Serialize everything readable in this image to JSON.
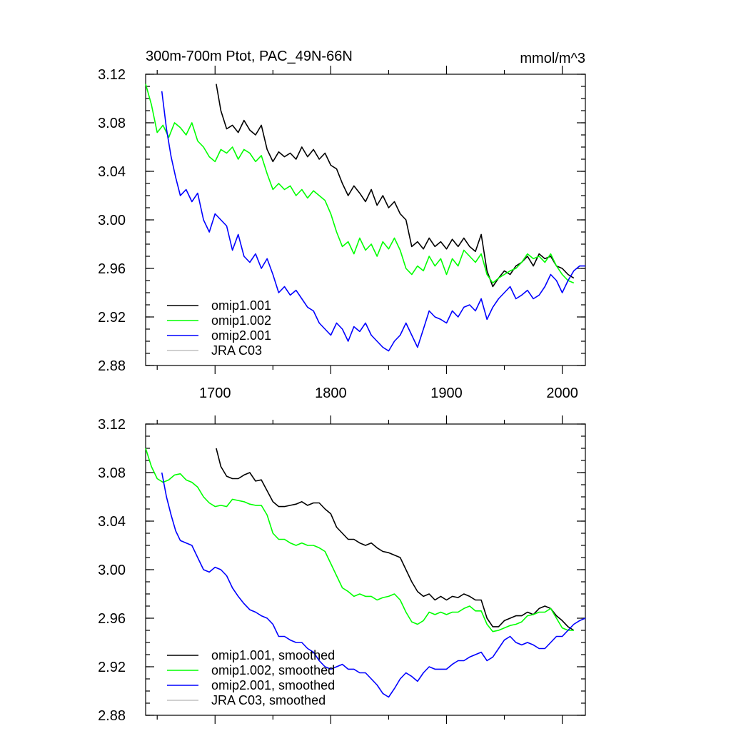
{
  "colors": {
    "omip1_001": "#000000",
    "omip1_002": "#00ff00",
    "omip2_001": "#0000ff",
    "jra_c03": "#c0c0c0"
  },
  "chart_data": [
    {
      "type": "line",
      "title": "300m-700m Ptot, PAC_49N-66N",
      "units": "mmol/m^3",
      "xlim": [
        1640,
        2020
      ],
      "ylim": [
        2.88,
        3.12
      ],
      "xticks": [
        1700,
        1800,
        1900,
        2000
      ],
      "xtick_labels": [
        "1700",
        "1800",
        "1900",
        "2000"
      ],
      "yticks": [
        2.88,
        2.92,
        2.96,
        3.0,
        3.04,
        3.08,
        3.12
      ],
      "ytick_labels": [
        "2.88",
        "2.92",
        "2.96",
        "3.00",
        "3.04",
        "3.08",
        "3.12"
      ],
      "legend_position": "bottom-left",
      "series": [
        {
          "name": "omip1.001",
          "color_key": "omip1_001",
          "x": [
            1701,
            1705,
            1710,
            1715,
            1720,
            1725,
            1730,
            1735,
            1740,
            1745,
            1750,
            1755,
            1760,
            1765,
            1770,
            1775,
            1780,
            1785,
            1790,
            1795,
            1800,
            1805,
            1810,
            1815,
            1820,
            1825,
            1830,
            1835,
            1840,
            1845,
            1850,
            1855,
            1860,
            1865,
            1870,
            1875,
            1880,
            1885,
            1890,
            1895,
            1900,
            1905,
            1910,
            1915,
            1920,
            1925,
            1930,
            1935,
            1940,
            1945,
            1950,
            1955,
            1960,
            1965,
            1970,
            1975,
            1980,
            1985,
            1990,
            1995,
            2000,
            2005,
            2010
          ],
          "values": [
            3.112,
            3.09,
            3.075,
            3.078,
            3.072,
            3.082,
            3.074,
            3.07,
            3.078,
            3.058,
            3.048,
            3.056,
            3.052,
            3.055,
            3.05,
            3.06,
            3.052,
            3.058,
            3.05,
            3.055,
            3.045,
            3.042,
            3.03,
            3.02,
            3.028,
            3.022,
            3.015,
            3.025,
            3.012,
            3.02,
            3.01,
            3.015,
            3.005,
            3.0,
            2.978,
            2.982,
            2.976,
            2.985,
            2.978,
            2.982,
            2.976,
            2.984,
            2.978,
            2.985,
            2.978,
            2.974,
            2.988,
            2.958,
            2.945,
            2.952,
            2.958,
            2.955,
            2.962,
            2.965,
            2.97,
            2.962,
            2.972,
            2.968,
            2.97,
            2.962,
            2.96,
            2.955,
            2.952
          ]
        },
        {
          "name": "omip1.002",
          "color_key": "omip1_002",
          "x": [
            1640,
            1645,
            1650,
            1655,
            1660,
            1665,
            1670,
            1675,
            1680,
            1685,
            1690,
            1695,
            1700,
            1705,
            1710,
            1715,
            1720,
            1725,
            1730,
            1735,
            1740,
            1745,
            1750,
            1755,
            1760,
            1765,
            1770,
            1775,
            1780,
            1785,
            1790,
            1795,
            1800,
            1805,
            1810,
            1815,
            1820,
            1825,
            1830,
            1835,
            1840,
            1845,
            1850,
            1855,
            1860,
            1865,
            1870,
            1875,
            1880,
            1885,
            1890,
            1895,
            1900,
            1905,
            1910,
            1915,
            1920,
            1925,
            1930,
            1935,
            1940,
            1945,
            1950,
            1955,
            1960,
            1965,
            1970,
            1975,
            1980,
            1985,
            1990,
            1995,
            2000,
            2005,
            2010
          ],
          "values": [
            3.112,
            3.095,
            3.072,
            3.078,
            3.068,
            3.08,
            3.076,
            3.07,
            3.08,
            3.065,
            3.06,
            3.052,
            3.048,
            3.058,
            3.055,
            3.06,
            3.05,
            3.058,
            3.055,
            3.048,
            3.053,
            3.038,
            3.025,
            3.03,
            3.025,
            3.028,
            3.02,
            3.025,
            3.018,
            3.024,
            3.02,
            3.016,
            3.005,
            2.99,
            2.978,
            2.982,
            2.972,
            2.985,
            2.975,
            2.98,
            2.97,
            2.982,
            2.976,
            2.985,
            2.975,
            2.96,
            2.955,
            2.962,
            2.958,
            2.97,
            2.962,
            2.968,
            2.955,
            2.968,
            2.962,
            2.975,
            2.97,
            2.965,
            2.972,
            2.955,
            2.948,
            2.952,
            2.955,
            2.958,
            2.96,
            2.965,
            2.972,
            2.968,
            2.97,
            2.965,
            2.972,
            2.962,
            2.955,
            2.95,
            2.948
          ]
        },
        {
          "name": "omip2.001",
          "color_key": "omip2_001",
          "x": [
            1654,
            1658,
            1662,
            1666,
            1670,
            1675,
            1680,
            1685,
            1690,
            1695,
            1700,
            1705,
            1710,
            1715,
            1720,
            1725,
            1730,
            1735,
            1740,
            1745,
            1750,
            1755,
            1760,
            1765,
            1770,
            1775,
            1780,
            1785,
            1790,
            1795,
            1800,
            1805,
            1810,
            1815,
            1820,
            1825,
            1830,
            1835,
            1840,
            1845,
            1850,
            1855,
            1860,
            1865,
            1870,
            1875,
            1880,
            1885,
            1890,
            1895,
            1900,
            1905,
            1910,
            1915,
            1920,
            1925,
            1930,
            1935,
            1940,
            1945,
            1950,
            1955,
            1960,
            1965,
            1970,
            1975,
            1980,
            1985,
            1990,
            1995,
            2000,
            2005,
            2010,
            2015,
            2020
          ],
          "values": [
            3.106,
            3.075,
            3.052,
            3.035,
            3.02,
            3.025,
            3.015,
            3.022,
            3.0,
            2.99,
            3.005,
            3.0,
            2.995,
            2.975,
            2.988,
            2.97,
            2.965,
            2.972,
            2.96,
            2.968,
            2.955,
            2.94,
            2.945,
            2.938,
            2.942,
            2.935,
            2.928,
            2.925,
            2.915,
            2.91,
            2.905,
            2.915,
            2.91,
            2.9,
            2.912,
            2.908,
            2.915,
            2.905,
            2.9,
            2.895,
            2.892,
            2.9,
            2.905,
            2.915,
            2.905,
            2.895,
            2.91,
            2.925,
            2.92,
            2.918,
            2.915,
            2.925,
            2.92,
            2.928,
            2.93,
            2.925,
            2.935,
            2.918,
            2.928,
            2.935,
            2.94,
            2.945,
            2.935,
            2.938,
            2.942,
            2.935,
            2.938,
            2.945,
            2.955,
            2.95,
            2.94,
            2.95,
            2.958,
            2.962,
            2.962
          ]
        },
        {
          "name": "JRA C03",
          "color_key": "jra_c03",
          "x": [],
          "values": []
        }
      ]
    },
    {
      "type": "line",
      "title": "",
      "units": "",
      "xlim": [
        1640,
        2020
      ],
      "ylim": [
        2.88,
        3.12
      ],
      "xticks": [
        1700,
        1800,
        1900,
        2000
      ],
      "xtick_labels": [],
      "yticks": [
        2.88,
        2.92,
        2.96,
        3.0,
        3.04,
        3.08,
        3.12
      ],
      "ytick_labels": [
        "2.88",
        "2.92",
        "2.96",
        "3.00",
        "3.04",
        "3.08",
        "3.12"
      ],
      "legend_position": "bottom-left",
      "series": [
        {
          "name": "omip1.001, smoothed",
          "color_key": "omip1_001",
          "x": [
            1701,
            1705,
            1710,
            1715,
            1720,
            1725,
            1730,
            1735,
            1740,
            1745,
            1750,
            1755,
            1760,
            1765,
            1770,
            1775,
            1780,
            1785,
            1790,
            1795,
            1800,
            1805,
            1810,
            1815,
            1820,
            1825,
            1830,
            1835,
            1840,
            1845,
            1850,
            1855,
            1860,
            1865,
            1870,
            1875,
            1880,
            1885,
            1890,
            1895,
            1900,
            1905,
            1910,
            1915,
            1920,
            1925,
            1930,
            1935,
            1940,
            1945,
            1950,
            1955,
            1960,
            1965,
            1970,
            1975,
            1980,
            1985,
            1990,
            1995,
            2000,
            2005,
            2010
          ],
          "values": [
            3.1,
            3.085,
            3.077,
            3.075,
            3.075,
            3.078,
            3.08,
            3.073,
            3.074,
            3.065,
            3.056,
            3.052,
            3.052,
            3.053,
            3.054,
            3.056,
            3.053,
            3.055,
            3.055,
            3.05,
            3.046,
            3.035,
            3.03,
            3.025,
            3.025,
            3.022,
            3.02,
            3.022,
            3.018,
            3.015,
            3.014,
            3.012,
            3.01,
            3.0,
            2.99,
            2.982,
            2.978,
            2.98,
            2.975,
            2.978,
            2.975,
            2.978,
            2.977,
            2.98,
            2.978,
            2.975,
            2.975,
            2.96,
            2.953,
            2.953,
            2.958,
            2.96,
            2.962,
            2.962,
            2.965,
            2.963,
            2.968,
            2.97,
            2.968,
            2.962,
            2.958,
            2.953,
            2.95
          ]
        },
        {
          "name": "omip1.002, smoothed",
          "color_key": "omip1_002",
          "x": [
            1640,
            1645,
            1650,
            1655,
            1660,
            1665,
            1670,
            1675,
            1680,
            1685,
            1690,
            1695,
            1700,
            1705,
            1710,
            1715,
            1720,
            1725,
            1730,
            1735,
            1740,
            1745,
            1750,
            1755,
            1760,
            1765,
            1770,
            1775,
            1780,
            1785,
            1790,
            1795,
            1800,
            1805,
            1810,
            1815,
            1820,
            1825,
            1830,
            1835,
            1840,
            1845,
            1850,
            1855,
            1860,
            1865,
            1870,
            1875,
            1880,
            1885,
            1890,
            1895,
            1900,
            1905,
            1910,
            1915,
            1920,
            1925,
            1930,
            1935,
            1940,
            1945,
            1950,
            1955,
            1960,
            1965,
            1970,
            1975,
            1980,
            1985,
            1990,
            1995,
            2000,
            2005,
            2010
          ],
          "values": [
            3.1,
            3.085,
            3.075,
            3.072,
            3.074,
            3.078,
            3.079,
            3.074,
            3.072,
            3.068,
            3.06,
            3.055,
            3.052,
            3.053,
            3.052,
            3.058,
            3.057,
            3.056,
            3.054,
            3.053,
            3.053,
            3.045,
            3.03,
            3.025,
            3.025,
            3.022,
            3.02,
            3.022,
            3.02,
            3.02,
            3.018,
            3.015,
            3.005,
            2.995,
            2.985,
            2.982,
            2.978,
            2.98,
            2.978,
            2.978,
            2.975,
            2.977,
            2.978,
            2.98,
            2.975,
            2.965,
            2.957,
            2.955,
            2.958,
            2.965,
            2.963,
            2.965,
            2.963,
            2.965,
            2.965,
            2.968,
            2.97,
            2.966,
            2.966,
            2.955,
            2.949,
            2.95,
            2.952,
            2.954,
            2.955,
            2.957,
            2.962,
            2.963,
            2.965,
            2.965,
            2.968,
            2.96,
            2.952,
            2.95,
            2.95
          ]
        },
        {
          "name": "omip2.001, smoothed",
          "color_key": "omip2_001",
          "x": [
            1654,
            1658,
            1662,
            1666,
            1670,
            1675,
            1680,
            1685,
            1690,
            1695,
            1700,
            1705,
            1710,
            1715,
            1720,
            1725,
            1730,
            1735,
            1740,
            1745,
            1750,
            1755,
            1760,
            1765,
            1770,
            1775,
            1780,
            1785,
            1790,
            1795,
            1800,
            1805,
            1810,
            1815,
            1820,
            1825,
            1830,
            1835,
            1840,
            1845,
            1850,
            1855,
            1860,
            1865,
            1870,
            1875,
            1880,
            1885,
            1890,
            1895,
            1900,
            1905,
            1910,
            1915,
            1920,
            1925,
            1930,
            1935,
            1940,
            1945,
            1950,
            1955,
            1960,
            1965,
            1970,
            1975,
            1980,
            1985,
            1990,
            1995,
            2000,
            2005,
            2010,
            2015,
            2020
          ],
          "values": [
            3.08,
            3.06,
            3.045,
            3.032,
            3.024,
            3.022,
            3.02,
            3.01,
            3.0,
            2.998,
            3.002,
            3.0,
            2.995,
            2.985,
            2.978,
            2.972,
            2.967,
            2.965,
            2.962,
            2.96,
            2.955,
            2.945,
            2.945,
            2.942,
            2.94,
            2.94,
            2.935,
            2.932,
            2.925,
            2.92,
            2.918,
            2.92,
            2.922,
            2.918,
            2.918,
            2.915,
            2.915,
            2.91,
            2.905,
            2.898,
            2.895,
            2.902,
            2.91,
            2.915,
            2.912,
            2.908,
            2.915,
            2.92,
            2.918,
            2.918,
            2.918,
            2.922,
            2.925,
            2.925,
            2.928,
            2.93,
            2.932,
            2.925,
            2.928,
            2.935,
            2.942,
            2.945,
            2.94,
            2.938,
            2.94,
            2.938,
            2.935,
            2.935,
            2.94,
            2.945,
            2.945,
            2.95,
            2.955,
            2.958,
            2.96
          ]
        },
        {
          "name": "JRA C03, smoothed",
          "color_key": "jra_c03",
          "x": [],
          "values": []
        }
      ]
    }
  ]
}
